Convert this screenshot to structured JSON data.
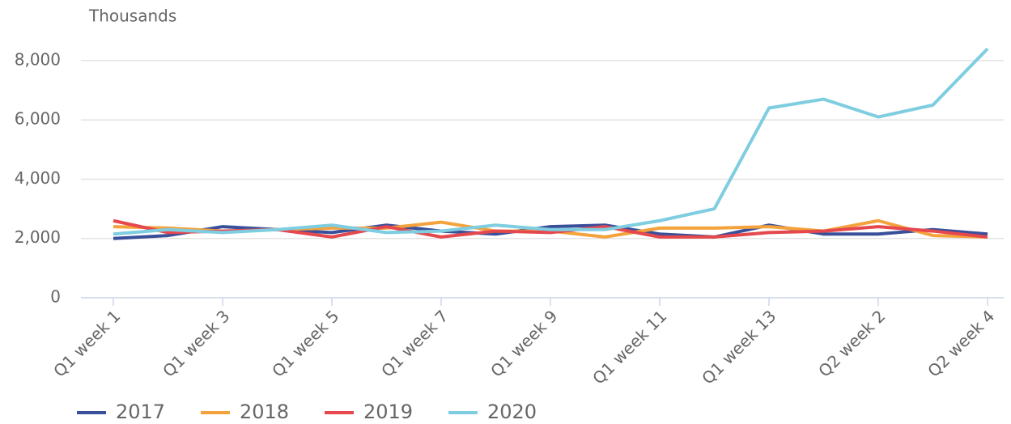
{
  "chart_data": {
    "type": "line",
    "y_label": "Thousands",
    "categories": [
      "Q1 week 1",
      null,
      "Q1 week 3",
      null,
      "Q1 week 5",
      null,
      "Q1 week 7",
      null,
      "Q1 week 9",
      null,
      "Q1 week 11",
      null,
      "Q1 week 13",
      null,
      "Q2 week 2",
      null,
      "Q2 week 4"
    ],
    "series": [
      {
        "name": "2017",
        "color": "#3a4f9a",
        "values": [
          2000,
          2100,
          2400,
          2300,
          2200,
          2450,
          2250,
          2150,
          2400,
          2450,
          2150,
          2050,
          2450,
          2150,
          2150,
          2300,
          2150
        ]
      },
      {
        "name": "2018",
        "color": "#f4a23c",
        "values": [
          2400,
          2350,
          2250,
          2300,
          2350,
          2350,
          2550,
          2250,
          2250,
          2050,
          2350,
          2350,
          2400,
          2250,
          2600,
          2100,
          2050
        ]
      },
      {
        "name": "2019",
        "color": "#e5484d",
        "values": [
          2600,
          2200,
          2250,
          2300,
          2050,
          2400,
          2050,
          2250,
          2200,
          2400,
          2050,
          2050,
          2200,
          2250,
          2400,
          2250,
          2050
        ]
      },
      {
        "name": "2020",
        "color": "#7ecde0",
        "values": [
          2150,
          2300,
          2200,
          2300,
          2450,
          2200,
          2250,
          2450,
          2300,
          2300,
          2600,
          3000,
          6400,
          6700,
          6100,
          6500,
          8400
        ]
      }
    ],
    "ylim": [
      0,
      8500
    ],
    "yticks": [
      0,
      {
        "value": 2000,
        "label": "2,000"
      },
      {
        "value": 4000,
        "label": "4,000"
      },
      {
        "value": 6000,
        "label": "6,000"
      },
      {
        "value": 8000,
        "label": "8,000"
      }
    ],
    "grid": true,
    "legend": "bottom-left"
  }
}
